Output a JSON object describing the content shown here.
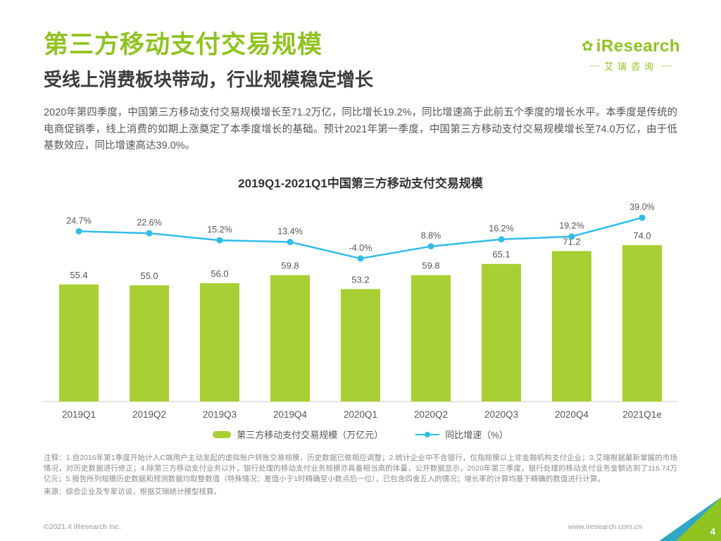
{
  "page": {
    "title": "第三方移动支付交易规模",
    "subtitle": "受线上消费板块带动，行业规模稳定增长",
    "body": "2020年第四季度，中国第三方移动支付交易规模增长至71.2万亿，同比增长19.2%，同比增速高于此前五个季度的增长水平。本季度是传统的电商促销季，线上消费的如期上涨奠定了本季度增长的基础。预计2021年第一季度，中国第三方移动支付交易规模增长至74.0万亿，由于低基数效应，同比增速高达39.0%。"
  },
  "logo": {
    "flower_icon": "✿",
    "brand": "iResearch",
    "cn": "艾瑞咨询"
  },
  "chart_data": {
    "type": "bar+line",
    "title": "2019Q1-2021Q1中国第三方移动支付交易规模",
    "categories": [
      "2019Q1",
      "2019Q2",
      "2019Q3",
      "2019Q4",
      "2020Q1",
      "2020Q2",
      "2020Q3",
      "2020Q4",
      "2021Q1e"
    ],
    "series": [
      {
        "name": "第三方移动支付交易规模（万亿元）",
        "type": "bar",
        "values": [
          55.4,
          55.0,
          56.0,
          59.8,
          53.2,
          59.8,
          65.1,
          71.2,
          74.0
        ],
        "color": "#a8cf33"
      },
      {
        "name": "同比增速（%）",
        "type": "line",
        "values": [
          24.7,
          22.6,
          15.2,
          13.4,
          -4.0,
          8.8,
          16.2,
          19.2,
          39.0
        ],
        "color": "#2fbde8"
      }
    ],
    "bar_ylim": [
      0,
      80
    ],
    "line_ylim": [
      -10,
      45
    ],
    "grid": false,
    "legend_position": "bottom"
  },
  "notes": {
    "text": "注释：1.自2016年第1季度开始计入C端用户主动发起的虚拟账户转账交易规模，历史数据已做相应调整；2.统计企业中不含银行，仅指规模以上非金融机构支付企业；3.艾瑞根据最新掌握的市场情况，对历史数据进行修正；4.除第三方移动支付业务以外，银行处理的移动支付业务规模亦具备相当高的体量，公开数据显示，2020年第三季度，银行处理的移动支付业务金额达到了116.74万亿元；5.报告所列规模历史数据和预测数据均取整数值（特殊情况：差值小于1时精确至小数点后一位），已包含四舍五入的情况；增长率的计算均基于精确的数值进行计算。",
    "source": "来源：综合企业及专家访谈，根据艾瑞统计模型核算。"
  },
  "footer": {
    "copyright": "©2021.4 iResearch Inc.",
    "site": "www.iresearch.com.cn",
    "page": "4"
  },
  "colors": {
    "brand_green": "#8fc31f",
    "bar_green": "#a8cf33",
    "line_blue": "#2fbde8",
    "corner_teal": "#2fa8c5"
  }
}
